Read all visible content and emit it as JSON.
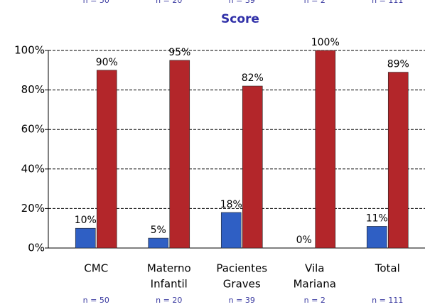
{
  "chart_data": {
    "type": "bar",
    "title": "Score",
    "categories": [
      [
        "CMC"
      ],
      [
        "Materno",
        "Infantil"
      ],
      [
        "Pacientes",
        "Graves"
      ],
      [
        "Vila",
        "Mariana"
      ],
      [
        "Total"
      ]
    ],
    "n_labels": [
      "n = 50",
      "n = 20",
      "n = 39",
      "n = 2",
      "n = 111"
    ],
    "series": [
      {
        "color": "#2f5fc4",
        "values": [
          10,
          5,
          18,
          0,
          11
        ],
        "value_labels": [
          "10%",
          "5%",
          "18%",
          "0%",
          "11%"
        ]
      },
      {
        "color": "#b3262a",
        "values": [
          90,
          95,
          82,
          100,
          89
        ],
        "value_labels": [
          "90%",
          "95%",
          "82%",
          "100%",
          "89%"
        ]
      }
    ],
    "ylim": [
      0,
      100
    ],
    "yticks": [
      {
        "value": 0,
        "label": "0%"
      },
      {
        "value": 20,
        "label": "20%"
      },
      {
        "value": 40,
        "label": "40%"
      },
      {
        "value": 60,
        "label": "60%"
      },
      {
        "value": 80,
        "label": "80%"
      },
      {
        "value": 100,
        "label": "100%"
      }
    ],
    "grid": true
  }
}
